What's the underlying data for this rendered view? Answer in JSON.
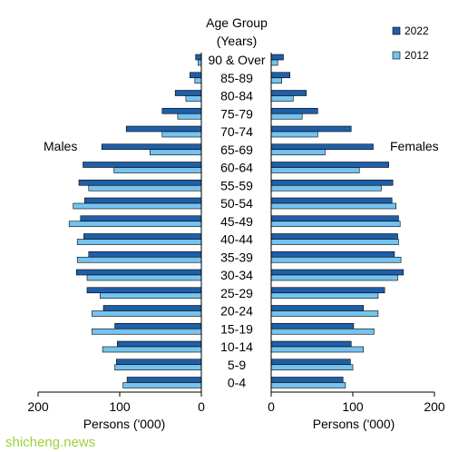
{
  "chart_data": {
    "type": "bar",
    "orientation": "horizontal",
    "layout": "population-pyramid",
    "categories": [
      "90 & Over",
      "85-89",
      "80-84",
      "75-79",
      "70-74",
      "65-69",
      "60-64",
      "55-59",
      "50-54",
      "45-49",
      "40-44",
      "35-39",
      "30-34",
      "25-29",
      "20-24",
      "15-19",
      "10-14",
      "5-9",
      "0-4"
    ],
    "category_header": "Age Group\n(Years)",
    "left_panel_label": "Males",
    "right_panel_label": "Females",
    "xlabel": "Persons ('000)",
    "xlim": [
      0,
      200
    ],
    "xticks": [
      200,
      100,
      0
    ],
    "right_xticks": [
      0,
      100,
      200
    ],
    "series": [
      {
        "name": "2022",
        "color": "#1f5fa8",
        "males": [
          7,
          14,
          32,
          48,
          92,
          122,
          145,
          150,
          143,
          148,
          144,
          138,
          153,
          140,
          120,
          106,
          103,
          104,
          91
        ],
        "females": [
          15,
          23,
          43,
          57,
          98,
          125,
          144,
          149,
          148,
          156,
          155,
          151,
          162,
          139,
          113,
          101,
          98,
          97,
          88
        ]
      },
      {
        "name": "2012",
        "color": "#75c3ee",
        "males": [
          4,
          8,
          19,
          29,
          48,
          63,
          107,
          138,
          157,
          162,
          152,
          152,
          140,
          124,
          134,
          134,
          121,
          106,
          96
        ],
        "females": [
          8,
          13,
          27,
          38,
          57,
          66,
          108,
          135,
          153,
          158,
          156,
          159,
          155,
          131,
          131,
          126,
          113,
          100,
          91
        ]
      }
    ],
    "legend_position": "top-right",
    "grid": false
  },
  "watermark": "shicheng.news"
}
